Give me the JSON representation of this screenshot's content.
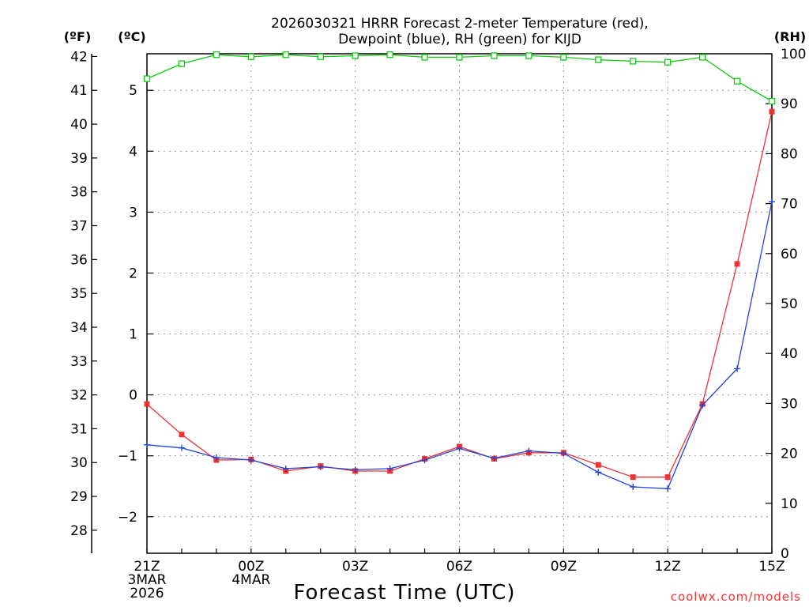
{
  "chart_data": {
    "type": "line",
    "title_lines": [
      "2026030321 HRRR Forecast 2-meter Temperature (red),",
      "Dewpoint (blue), RH (green) for KIJD"
    ],
    "xlabel": "Forecast Time (UTC)",
    "credit": "coolwx.com/models",
    "x_ticks": [
      {
        "index": 0,
        "lines": [
          "21Z",
          "3MAR",
          "2026"
        ]
      },
      {
        "index": 3,
        "lines": [
          "00Z",
          "4MAR"
        ]
      },
      {
        "index": 6,
        "lines": [
          "03Z"
        ]
      },
      {
        "index": 9,
        "lines": [
          "06Z"
        ]
      },
      {
        "index": 12,
        "lines": [
          "09Z"
        ]
      },
      {
        "index": 15,
        "lines": [
          "12Z"
        ]
      },
      {
        "index": 18,
        "lines": [
          "15Z"
        ]
      }
    ],
    "x_count": 19,
    "y_celsius": {
      "unit": "(ºC)",
      "range": [
        -2.6,
        5.6
      ],
      "ticks": [
        -2,
        -1,
        0,
        1,
        2,
        3,
        4,
        5
      ],
      "tick_labels": [
        "−2",
        "−1",
        "0",
        "1",
        "2",
        "3",
        "4",
        "5"
      ]
    },
    "y_fahrenheit": {
      "unit": "(ºF)",
      "ticks": [
        28,
        29,
        30,
        31,
        32,
        33,
        34,
        35,
        36,
        37,
        38,
        39,
        40,
        41,
        42
      ],
      "tick_labels": [
        "28",
        "29",
        "30",
        "31",
        "32",
        "33",
        "34",
        "35",
        "36",
        "37",
        "38",
        "39",
        "40",
        "41",
        "42"
      ]
    },
    "y_rh": {
      "unit": "(RH)",
      "range": [
        0,
        100
      ],
      "ticks": [
        0,
        10,
        20,
        30,
        40,
        50,
        60,
        70,
        80,
        90,
        100
      ],
      "tick_labels": [
        "0",
        "10",
        "20",
        "30",
        "40",
        "50",
        "60",
        "70",
        "80",
        "90",
        "100"
      ]
    },
    "series": [
      {
        "name": "Temperature",
        "unit": "C",
        "color": "#ee3333",
        "marker": "filled-square",
        "values": [
          -0.15,
          -0.65,
          -1.07,
          -1.06,
          -1.25,
          -1.17,
          -1.25,
          -1.25,
          -1.05,
          -0.85,
          -1.05,
          -0.95,
          -0.95,
          -1.15,
          -1.35,
          -1.35,
          -0.15,
          2.15,
          4.65
        ]
      },
      {
        "name": "Dewpoint",
        "unit": "C",
        "color": "#2244dd",
        "marker": "plus",
        "values": [
          -0.82,
          -0.87,
          -1.03,
          -1.07,
          -1.21,
          -1.18,
          -1.23,
          -1.21,
          -1.07,
          -0.88,
          -1.04,
          -0.92,
          -0.96,
          -1.27,
          -1.51,
          -1.54,
          -0.17,
          0.43,
          3.17
        ]
      },
      {
        "name": "RH",
        "unit": "%",
        "color": "#11cc11",
        "marker": "open-square",
        "values": [
          95,
          98,
          99.8,
          99.4,
          99.8,
          99.4,
          99.6,
          99.8,
          99.3,
          99.3,
          99.6,
          99.6,
          99.3,
          98.8,
          98.5,
          98.3,
          99.3,
          94.5,
          90.5
        ]
      }
    ]
  }
}
